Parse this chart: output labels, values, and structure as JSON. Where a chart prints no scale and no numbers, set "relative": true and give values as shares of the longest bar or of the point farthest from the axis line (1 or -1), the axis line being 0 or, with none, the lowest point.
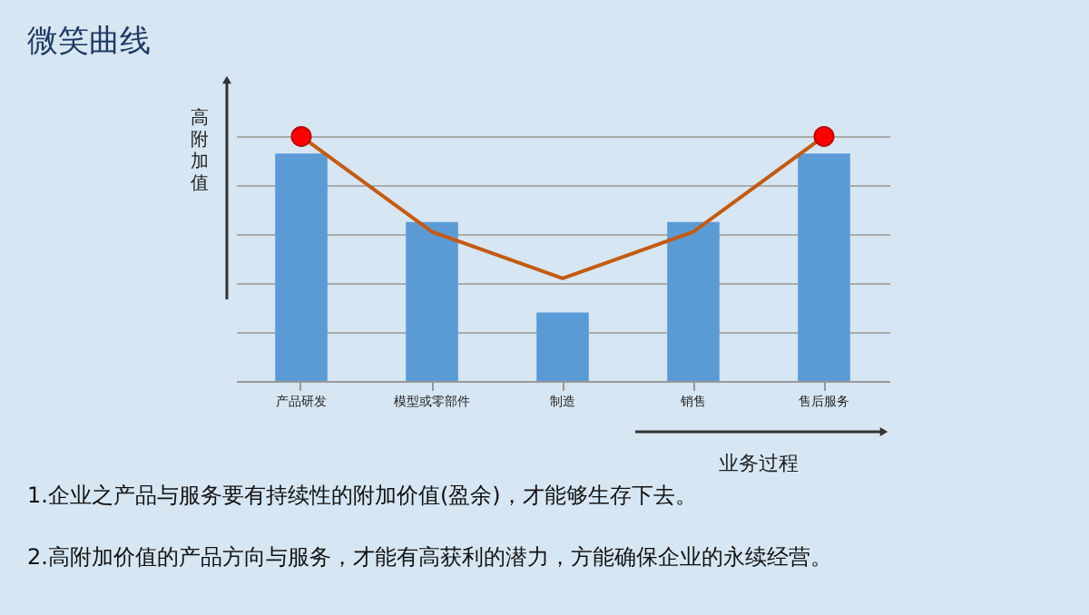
{
  "chart_data": {
    "type": "bar",
    "title": "微笑曲线",
    "ylabel": "高附加值",
    "xlabel": "业务过程",
    "categories": [
      "产品研发",
      "模型或零部件",
      "制造",
      "销售",
      "售后服务"
    ],
    "relative": true,
    "grid": "y",
    "series": [
      {
        "color": "#5b9bd5",
        "values": [
          0.93,
          0.65,
          0.28,
          0.65,
          0.93
        ]
      },
      {
        "type": "line",
        "color": "#c55a11",
        "marker": "none",
        "values": [
          1,
          0.61,
          0.42,
          0.61,
          1
        ]
      },
      {
        "type": "scatter",
        "color": "#ff0000",
        "marker": "circle",
        "values": [
          1,
          null,
          null,
          null,
          1
        ]
      }
    ],
    "annotations": [
      "1.企业之产品与服务要有持续性的附加价值(盈余)，才能够生存下去。",
      "2.高附加价值的产品方向与服务，才能有高获利的潜力，方能确保企业的永续经营。"
    ]
  }
}
